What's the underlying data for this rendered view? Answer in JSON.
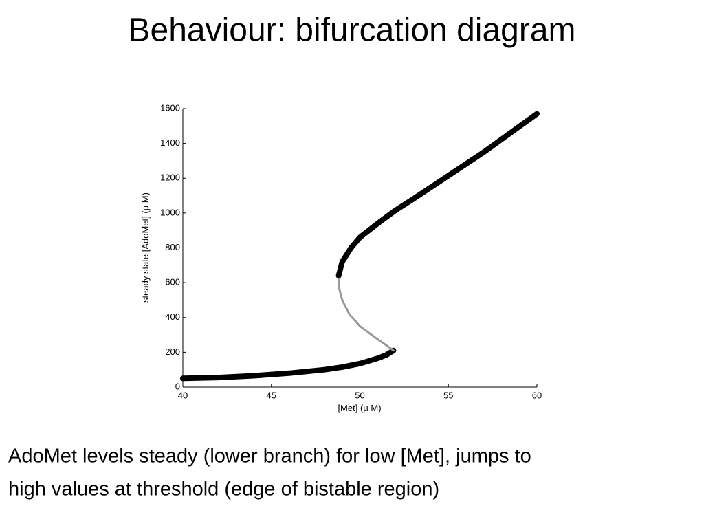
{
  "title": "Behaviour: bifurcation diagram",
  "caption": [
    "AdoMet levels steady (lower branch) for low [Met], jumps to",
    "high values at threshold (edge of bistable region)"
  ],
  "chart_data": {
    "type": "line",
    "xlabel": "[Met] (μ M)",
    "ylabel": "steady state [AdoMet] (μ M)",
    "xlim": [
      40,
      60
    ],
    "xticks": [
      40,
      45,
      50,
      55,
      60
    ],
    "ylim": [
      0,
      1600
    ],
    "yticks": [
      0,
      200,
      400,
      600,
      800,
      1000,
      1200,
      1400,
      1600
    ],
    "series": [
      {
        "color": "#000000",
        "x": [
          40,
          42,
          44,
          46,
          48,
          49,
          50,
          51,
          51.5,
          51.9
        ],
        "values": [
          50,
          55,
          65,
          80,
          100,
          115,
          135,
          165,
          185,
          210
        ]
      },
      {
        "color": "#999999",
        "x": [
          51.9,
          51.5,
          50.8,
          50,
          49.4,
          49,
          48.8,
          48.8
        ],
        "values": [
          210,
          240,
          290,
          350,
          420,
          500,
          580,
          640
        ]
      },
      {
        "color": "#000000",
        "x": [
          48.8,
          49,
          49.5,
          50,
          51,
          52,
          53,
          55,
          57,
          60
        ],
        "values": [
          640,
          720,
          800,
          860,
          940,
          1015,
          1080,
          1215,
          1350,
          1570
        ]
      }
    ]
  }
}
